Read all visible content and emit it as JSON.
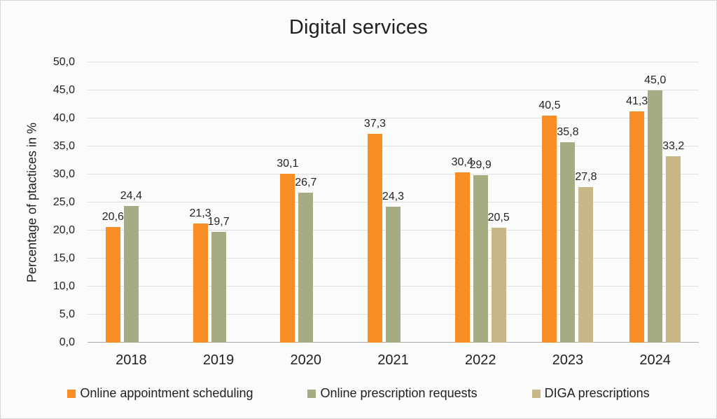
{
  "chart_data": {
    "type": "bar",
    "title": "Digital services",
    "xlabel": "",
    "ylabel": "Percentage of ptactices in %",
    "categories": [
      "2018",
      "2019",
      "2020",
      "2021",
      "2022",
      "2023",
      "2024"
    ],
    "series": [
      {
        "name": "Online appointment scheduling",
        "color": "#F98D25",
        "values": [
          20.6,
          21.3,
          30.1,
          37.3,
          30.4,
          40.5,
          41.3
        ],
        "labels": [
          "20,6",
          "21,3",
          "30,1",
          "37,3",
          "30,4",
          "40,5",
          "41,3"
        ]
      },
      {
        "name": "Online prescription requests",
        "color": "#A6AC81",
        "values": [
          24.4,
          19.7,
          26.7,
          24.3,
          29.9,
          35.8,
          45.0
        ],
        "labels": [
          "24,4",
          "19,7",
          "26,7",
          "24,3",
          "29,9",
          "35,8",
          "45,0"
        ]
      },
      {
        "name": "DIGA prescriptions",
        "color": "#C8B787",
        "values": [
          null,
          null,
          null,
          null,
          20.5,
          27.8,
          33.2
        ],
        "labels": [
          null,
          null,
          null,
          null,
          "20,5",
          "27,8",
          "33,2"
        ]
      }
    ],
    "ylim": [
      0,
      50
    ],
    "ytick_step": 5,
    "ytick_labels": [
      "0,0",
      "5,0",
      "10,0",
      "15,0",
      "20,0",
      "25,0",
      "30,0",
      "35,0",
      "40,0",
      "45,0",
      "50,0"
    ],
    "grid": true,
    "legend_position": "bottom",
    "grid_color": "#E0E0E0",
    "baseline_color": "#ABABAB"
  }
}
